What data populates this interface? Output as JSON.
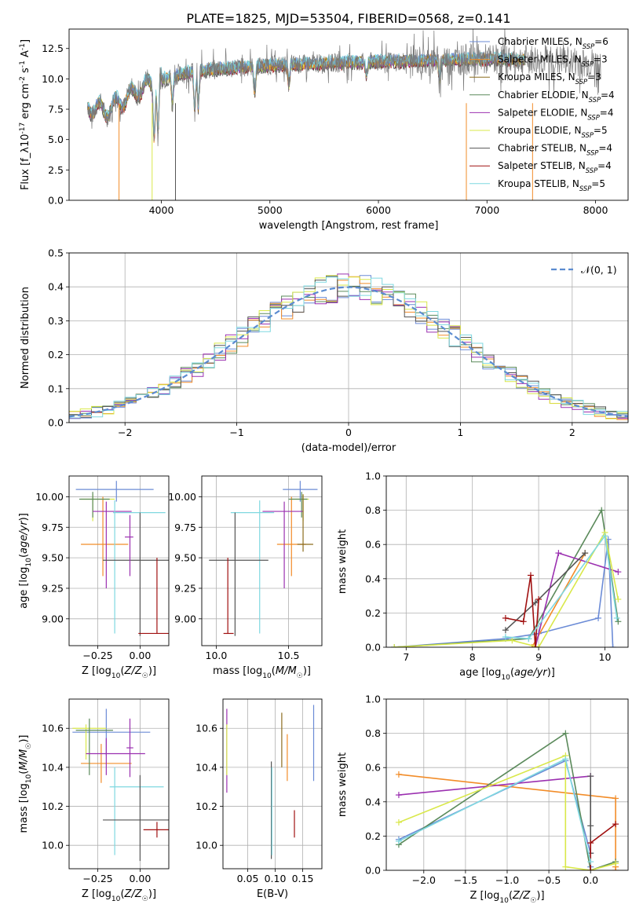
{
  "figure": {
    "title": "PLATE=1825, MJD=53504, FIBERID=0568, z=0.141"
  },
  "colors": {
    "Chabrier MILES": "#6b8bd6",
    "Salpeter MILES": "#f28c28",
    "Kroupa MILES": "#8c6d1f",
    "Chabrier ELODIE": "#5b8a5b",
    "Salpeter ELODIE": "#9b30b0",
    "Kroupa ELODIE": "#d9e84a",
    "Chabrier STELIB": "#555555",
    "Salpeter STELIB": "#a01010",
    "Kroupa STELIB": "#7fd8e0",
    "normal": "#5b8bd0"
  },
  "chart_data": [
    {
      "id": "spectrum",
      "type": "line",
      "xlabel": "wavelength [Angstrom, rest frame]",
      "ylabel": "Flux [f_λ10^-17 erg cm^-2 s^-1 A^-1]",
      "xlim": [
        3150,
        8300
      ],
      "ylim": [
        0,
        14.1
      ],
      "xticks": [
        4000,
        5000,
        6000,
        7000,
        8000
      ],
      "yticks": [
        0.0,
        2.5,
        5.0,
        7.5,
        10.0,
        12.5
      ],
      "grid": false,
      "legend_position": "top-right",
      "legend": [
        {
          "label": "Chabrier MILES, N_SSP=6",
          "color_key": "Chabrier MILES"
        },
        {
          "label": "Salpeter MILES, N_SSP=3",
          "color_key": "Salpeter MILES"
        },
        {
          "label": "Kroupa MILES, N_SSP=3",
          "color_key": "Kroupa MILES"
        },
        {
          "label": "Chabrier ELODIE, N_SSP=4",
          "color_key": "Chabrier ELODIE"
        },
        {
          "label": "Salpeter ELODIE, N_SSP=4",
          "color_key": "Salpeter ELODIE"
        },
        {
          "label": "Kroupa ELODIE, N_SSP=5",
          "color_key": "Kroupa ELODIE"
        },
        {
          "label": "Chabrier STELIB, N_SSP=4",
          "color_key": "Chabrier STELIB"
        },
        {
          "label": "Salpeter STELIB, N_SSP=4",
          "color_key": "Salpeter STELIB"
        },
        {
          "label": "Kroupa STELIB, N_SSP=5",
          "color_key": "Kroupa STELIB"
        }
      ],
      "continuum": {
        "x": [
          3320,
          3500,
          3700,
          3900,
          4100,
          4300,
          4500,
          4800,
          5000,
          5300,
          5600,
          6000,
          6400,
          6800,
          7200,
          7600,
          8050
        ],
        "y": [
          7.7,
          7.4,
          8.6,
          9.6,
          10.2,
          10.6,
          10.8,
          11.0,
          11.1,
          11.2,
          11.3,
          11.4,
          11.5,
          11.6,
          11.6,
          11.5,
          11.2
        ]
      },
      "absorption_lines": [
        {
          "x": 3934,
          "y": 4.6
        },
        {
          "x": 3969,
          "y": 5.0
        },
        {
          "x": 4102,
          "y": 7.6
        },
        {
          "x": 4308,
          "y": 6.9
        },
        {
          "x": 4341,
          "y": 7.4
        },
        {
          "x": 4861,
          "y": 8.3
        },
        {
          "x": 5175,
          "y": 9.4
        },
        {
          "x": 5890,
          "y": 9.9
        },
        {
          "x": 6563,
          "y": 9.7
        }
      ],
      "dropouts": [
        {
          "x": 3610,
          "color_key": "Salpeter MILES"
        },
        {
          "x": 3915,
          "color_key": "Kroupa ELODIE"
        },
        {
          "x": 4130,
          "color_key": "Chabrier STELIB"
        },
        {
          "x": 6810,
          "color_key": "Salpeter MILES"
        },
        {
          "x": 7420,
          "color_key": "Salpeter MILES"
        }
      ]
    },
    {
      "id": "residuals",
      "type": "line",
      "xlabel": "(data-model)/error",
      "ylabel": "Normed distribution",
      "xlim": [
        -2.5,
        2.5
      ],
      "ylim": [
        0,
        0.5
      ],
      "xticks": [
        -2,
        -1,
        0,
        1,
        2
      ],
      "yticks": [
        0.0,
        0.1,
        0.2,
        0.3,
        0.4,
        0.5
      ],
      "grid": true,
      "legend_position": "top-right",
      "legend": [
        {
          "label": "𝒩(0, 1)",
          "color_key": "normal"
        }
      ],
      "normal_curve": {
        "mu": 0,
        "sigma": 1
      },
      "histogram_bins": {
        "start": -2.5,
        "width": 0.1,
        "count": 50
      },
      "histogram_series_colors": [
        "Chabrier MILES",
        "Salpeter MILES",
        "Chabrier ELODIE",
        "Salpeter ELODIE",
        "Kroupa ELODIE",
        "Chabrier STELIB",
        "Kroupa STELIB"
      ]
    },
    {
      "id": "age_vs_Z",
      "type": "scatter",
      "xlabel": "Z [log10(Z/Z☉)]",
      "ylabel": "age  [log10(age/yr)]",
      "xlim": [
        -0.42,
        0.17
      ],
      "ylim": [
        8.78,
        10.17
      ],
      "xticks": [
        -0.25,
        0.0
      ],
      "yticks": [
        9.0,
        9.25,
        9.5,
        9.75,
        10.0
      ],
      "grid": true,
      "points": [
        {
          "s": "Chabrier MILES",
          "x": -0.14,
          "y": 10.06,
          "xe": [
            -0.38,
            0.08
          ],
          "ye": [
            9.96,
            10.13
          ]
        },
        {
          "s": "Salpeter MILES",
          "x": -0.22,
          "y": 9.61,
          "xe": [
            -0.35,
            -0.07
          ],
          "ye": [
            9.35,
            10.0
          ]
        },
        {
          "s": "Kroupa ELODIE",
          "x": -0.28,
          "y": 9.98,
          "xe": [
            -0.35,
            -0.15
          ],
          "ye": [
            9.8,
            10.02
          ]
        },
        {
          "s": "Chabrier ELODIE",
          "x": -0.28,
          "y": 9.98,
          "xe": [
            -0.36,
            -0.18
          ],
          "ye": [
            9.83,
            10.04
          ]
        },
        {
          "s": "Salpeter ELODIE",
          "x": -0.2,
          "y": 9.88,
          "xe": [
            -0.28,
            -0.05
          ],
          "ye": [
            9.25,
            9.96
          ]
        },
        {
          "s": "Kroupa STELIB",
          "x": -0.15,
          "y": 9.87,
          "xe": [
            -0.16,
            0.15
          ],
          "ye": [
            8.88,
            9.97
          ]
        },
        {
          "s": "Chabrier STELIB",
          "x": 0.0,
          "y": 9.48,
          "xe": [
            -0.22,
            0.2
          ],
          "ye": [
            8.86,
            9.87
          ]
        },
        {
          "s": "Salpeter STELIB",
          "x": 0.1,
          "y": 8.88,
          "xe": [
            -0.01,
            0.2
          ],
          "ye": [
            8.88,
            9.5
          ]
        },
        {
          "s": "Salpeter ELODIE",
          "x": -0.06,
          "y": 9.67,
          "xe": [
            -0.09,
            -0.04
          ],
          "ye": [
            9.35,
            9.85
          ]
        }
      ]
    },
    {
      "id": "age_vs_mass",
      "type": "scatter",
      "xlabel": "mass [log10(M/M☉)]",
      "ylabel": "",
      "xlim": [
        9.9,
        10.73
      ],
      "ylim": [
        8.78,
        10.17
      ],
      "xticks": [
        10.0,
        10.5
      ],
      "yticks": [
        9.0,
        9.25,
        9.5,
        9.75,
        10.0
      ],
      "grid": true,
      "points": [
        {
          "s": "Chabrier MILES",
          "x": 10.58,
          "y": 10.06,
          "xe": [
            10.46,
            10.7
          ],
          "ye": [
            9.96,
            10.13
          ]
        },
        {
          "s": "Salpeter MILES",
          "x": 10.52,
          "y": 9.61,
          "xe": [
            10.42,
            10.62
          ],
          "ye": [
            9.35,
            10.0
          ]
        },
        {
          "s": "Kroupa ELODIE",
          "x": 10.6,
          "y": 9.98,
          "xe": [
            10.52,
            10.64
          ],
          "ye": [
            9.8,
            10.02
          ]
        },
        {
          "s": "Chabrier ELODIE",
          "x": 10.59,
          "y": 9.98,
          "xe": [
            10.5,
            10.63
          ],
          "ye": [
            9.83,
            10.04
          ]
        },
        {
          "s": "Salpeter ELODIE",
          "x": 10.47,
          "y": 9.88,
          "xe": [
            10.32,
            10.6
          ],
          "ye": [
            9.25,
            9.96
          ]
        },
        {
          "s": "Kroupa STELIB",
          "x": 10.3,
          "y": 9.87,
          "xe": [
            10.1,
            10.4
          ],
          "ye": [
            8.88,
            9.97
          ]
        },
        {
          "s": "Chabrier STELIB",
          "x": 10.13,
          "y": 9.48,
          "xe": [
            9.95,
            10.36
          ],
          "ye": [
            8.86,
            9.87
          ]
        },
        {
          "s": "Salpeter STELIB",
          "x": 10.08,
          "y": 8.88,
          "xe": [
            10.05,
            10.12
          ],
          "ye": [
            8.88,
            9.5
          ]
        },
        {
          "s": "Kroupa MILES",
          "x": 10.6,
          "y": 9.61,
          "xe": [
            10.56,
            10.67
          ],
          "ye": [
            9.55,
            10.02
          ]
        }
      ]
    },
    {
      "id": "weight_vs_age",
      "type": "line",
      "xlabel": "age  [log10(age/yr)]",
      "ylabel": "mass weight",
      "xlim": [
        6.7,
        10.35
      ],
      "ylim": [
        0,
        1.0
      ],
      "xticks": [
        7,
        8,
        9,
        10
      ],
      "yticks": [
        0.0,
        0.2,
        0.4,
        0.6,
        0.8,
        1.0
      ],
      "grid": true,
      "series": [
        {
          "s": "Chabrier MILES",
          "x": [
            6.82,
            8.5,
            9.0,
            9.9,
            10.05,
            10.12
          ],
          "y": [
            0.0,
            0.05,
            0.08,
            0.17,
            0.63,
            0.0
          ]
        },
        {
          "s": "Salpeter MILES",
          "x": [
            8.9,
            9.7
          ],
          "y": [
            0.0,
            0.55
          ]
        },
        {
          "s": "Chabrier ELODIE",
          "x": [
            6.82,
            8.85,
            9.95,
            10.2
          ],
          "y": [
            0.0,
            0.05,
            0.8,
            0.15
          ]
        },
        {
          "s": "Salpeter ELODIE",
          "x": [
            8.95,
            9.3,
            10.2
          ],
          "y": [
            0.0,
            0.55,
            0.44
          ]
        },
        {
          "s": "Kroupa ELODIE",
          "x": [
            6.82,
            8.6,
            9.0,
            10.0,
            10.2
          ],
          "y": [
            0.0,
            0.04,
            0.0,
            0.67,
            0.28
          ]
        },
        {
          "s": "Chabrier STELIB",
          "x": [
            8.5,
            8.95,
            9.7
          ],
          "y": [
            0.1,
            0.26,
            0.55
          ]
        },
        {
          "s": "Salpeter STELIB",
          "x": [
            8.5,
            8.77,
            8.88,
            8.95,
            9.0
          ],
          "y": [
            0.17,
            0.15,
            0.42,
            0.0,
            0.28
          ]
        },
        {
          "s": "Kroupa STELIB",
          "x": [
            8.5,
            8.85,
            10.0,
            10.18
          ],
          "y": [
            0.06,
            0.05,
            0.65,
            0.17
          ]
        }
      ]
    },
    {
      "id": "mass_vs_Z",
      "type": "scatter",
      "xlabel": "Z [log10(Z/Z☉)]",
      "ylabel": "mass [log10(M/M☉)]",
      "xlim": [
        -0.42,
        0.17
      ],
      "ylim": [
        9.88,
        10.75
      ],
      "xticks": [
        -0.25,
        0.0
      ],
      "yticks": [
        10.0,
        10.2,
        10.4,
        10.6
      ],
      "grid": true,
      "points": [
        {
          "s": "Chabrier MILES",
          "x": -0.2,
          "y": 10.58,
          "xe": [
            -0.4,
            0.06
          ],
          "ye": [
            10.46,
            10.7
          ]
        },
        {
          "s": "Salpeter MILES",
          "x": -0.23,
          "y": 10.42,
          "xe": [
            -0.35,
            -0.05
          ],
          "ye": [
            10.32,
            10.52
          ]
        },
        {
          "s": "Kroupa ELODIE",
          "x": -0.32,
          "y": 10.6,
          "xe": [
            -0.4,
            -0.2
          ],
          "ye": [
            10.44,
            10.62
          ]
        },
        {
          "s": "Chabrier ELODIE",
          "x": -0.3,
          "y": 10.59,
          "xe": [
            -0.38,
            -0.16
          ],
          "ye": [
            10.36,
            10.65
          ]
        },
        {
          "s": "Salpeter ELODIE",
          "x": -0.2,
          "y": 10.47,
          "xe": [
            -0.32,
            0.03
          ],
          "ye": [
            10.36,
            10.55
          ]
        },
        {
          "s": "Kroupa STELIB",
          "x": -0.15,
          "y": 10.3,
          "xe": [
            -0.18,
            0.14
          ],
          "ye": [
            9.95,
            10.4
          ]
        },
        {
          "s": "Chabrier STELIB",
          "x": 0.0,
          "y": 10.13,
          "xe": [
            -0.22,
            0.2
          ],
          "ye": [
            9.92,
            10.36
          ]
        },
        {
          "s": "Salpeter STELIB",
          "x": 0.1,
          "y": 10.08,
          "xe": [
            0.02,
            0.18
          ],
          "ye": [
            10.04,
            10.12
          ]
        },
        {
          "s": "Salpeter ELODIE",
          "x": -0.06,
          "y": 10.5,
          "xe": [
            -0.08,
            -0.04
          ],
          "ye": [
            10.35,
            10.65
          ]
        }
      ]
    },
    {
      "id": "mass_vs_EBV",
      "type": "scatter",
      "xlabel": "E(B-V)",
      "ylabel": "",
      "xlim": [
        0.005,
        0.185
      ],
      "ylim": [
        9.88,
        10.75
      ],
      "xticks": [
        0.05,
        0.1,
        0.15
      ],
      "yticks": [
        10.0,
        10.2,
        10.4,
        10.6
      ],
      "grid": true,
      "points": [
        {
          "s": "Salpeter ELODIE",
          "x": 0.012,
          "y": 10.47,
          "xe": [
            0.012,
            0.012
          ],
          "ye": [
            10.27,
            10.7
          ]
        },
        {
          "s": "Kroupa ELODIE",
          "x": 0.012,
          "y": 10.5,
          "xe": [
            0.012,
            0.012
          ],
          "ye": [
            10.36,
            10.62
          ]
        },
        {
          "s": "Chabrier STELIB",
          "x": 0.093,
          "y": 10.13,
          "xe": [
            0.093,
            0.093
          ],
          "ye": [
            9.93,
            10.43
          ]
        },
        {
          "s": "Kroupa STELIB",
          "x": 0.094,
          "y": 10.2,
          "xe": [
            0.094,
            0.094
          ],
          "ye": [
            9.95,
            10.4
          ]
        },
        {
          "s": "Kroupa MILES",
          "x": 0.112,
          "y": 10.55,
          "xe": [
            0.112,
            0.112
          ],
          "ye": [
            10.4,
            10.68
          ]
        },
        {
          "s": "Salpeter MILES",
          "x": 0.122,
          "y": 10.45,
          "xe": [
            0.122,
            0.122
          ],
          "ye": [
            10.33,
            10.57
          ]
        },
        {
          "s": "Salpeter STELIB",
          "x": 0.135,
          "y": 10.12,
          "xe": [
            0.135,
            0.135
          ],
          "ye": [
            10.04,
            10.18
          ]
        },
        {
          "s": "Chabrier MILES",
          "x": 0.17,
          "y": 10.55,
          "xe": [
            0.17,
            0.17
          ],
          "ye": [
            10.33,
            10.72
          ]
        }
      ]
    },
    {
      "id": "weight_vs_Z",
      "type": "line",
      "xlabel": "Z [log10(Z/Z☉)]",
      "ylabel": "mass weight",
      "xlim": [
        -2.45,
        0.45
      ],
      "ylim": [
        0,
        1.0
      ],
      "xticks": [
        -2.0,
        -1.5,
        -1.0,
        -0.5,
        0.0
      ],
      "yticks": [
        0.0,
        0.2,
        0.4,
        0.6,
        0.8,
        1.0
      ],
      "grid": true,
      "series": [
        {
          "s": "Salpeter MILES",
          "x": [
            -2.3,
            0.3,
            0.3,
            0.3
          ],
          "y": [
            0.56,
            0.42,
            0.02,
            0.0
          ]
        },
        {
          "s": "Chabrier MILES",
          "x": [
            -2.3,
            -0.3,
            0.0,
            0.0
          ],
          "y": [
            0.18,
            0.64,
            0.1,
            0.02
          ]
        },
        {
          "s": "Chabrier ELODIE",
          "x": [
            -2.3,
            -0.3,
            0.0,
            0.3
          ],
          "y": [
            0.15,
            0.8,
            0.0,
            0.05
          ]
        },
        {
          "s": "Salpeter ELODIE",
          "x": [
            -2.3,
            0.0
          ],
          "y": [
            0.44,
            0.55
          ]
        },
        {
          "s": "Kroupa ELODIE",
          "x": [
            -2.3,
            -0.3,
            -0.3,
            0.0,
            0.3
          ],
          "y": [
            0.28,
            0.67,
            0.02,
            0.0,
            0.04
          ]
        },
        {
          "s": "Chabrier STELIB",
          "x": [
            0.0,
            0.0,
            0.0
          ],
          "y": [
            0.55,
            0.26,
            0.1
          ]
        },
        {
          "s": "Salpeter STELIB",
          "x": [
            0.0,
            0.0,
            0.3
          ],
          "y": [
            0.0,
            0.16,
            0.27
          ]
        },
        {
          "s": "Kroupa STELIB",
          "x": [
            -2.3,
            -0.3,
            0.0
          ],
          "y": [
            0.17,
            0.65,
            0.05
          ]
        }
      ]
    }
  ]
}
